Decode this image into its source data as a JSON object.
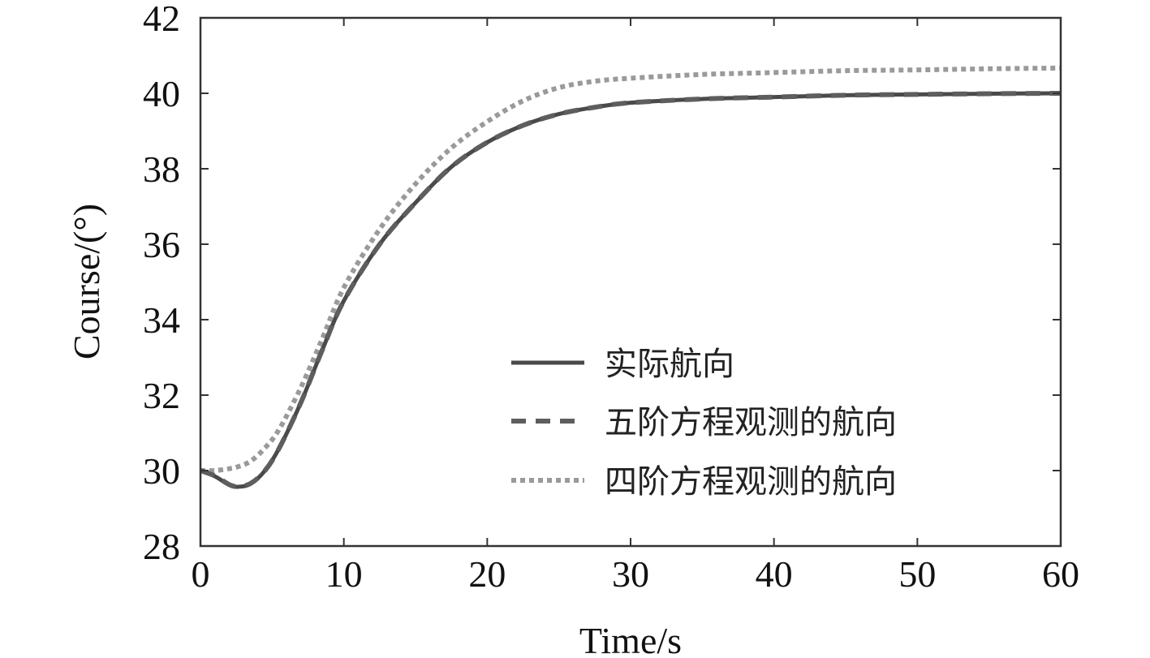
{
  "chart_data": {
    "type": "line",
    "xlabel": "Time/s",
    "ylabel": "Course/(°)",
    "xlim": [
      0,
      60
    ],
    "ylim": [
      28,
      42
    ],
    "xticks": [
      0,
      10,
      20,
      30,
      40,
      50,
      60
    ],
    "yticks": [
      28,
      30,
      32,
      34,
      36,
      38,
      40,
      42
    ],
    "grid": false,
    "legend_position": "bottom-right",
    "x": [
      0,
      1,
      2,
      2.6,
      3.5,
      4.5,
      5.5,
      7,
      8.5,
      10,
      12.5,
      15,
      17.5,
      20,
      22.5,
      25,
      27.5,
      30,
      35,
      40,
      45,
      50,
      55,
      60
    ],
    "series": [
      {
        "name": "实际航向",
        "style": "solid",
        "color": "#4a4a4a",
        "values": [
          30,
          29.85,
          29.62,
          29.57,
          29.65,
          30.0,
          30.6,
          31.8,
          33.2,
          34.5,
          36.0,
          37.1,
          38.05,
          38.7,
          39.15,
          39.45,
          39.63,
          39.75,
          39.85,
          39.9,
          39.95,
          39.97,
          39.99,
          40
        ]
      },
      {
        "name": "五阶方程观测的航向",
        "style": "dashed",
        "color": "#5e5e5e",
        "values": [
          30,
          29.86,
          29.63,
          29.58,
          29.66,
          30.0,
          30.6,
          31.8,
          33.2,
          34.5,
          36.0,
          37.1,
          38.05,
          38.7,
          39.15,
          39.45,
          39.63,
          39.75,
          39.85,
          39.9,
          39.95,
          39.97,
          39.99,
          40
        ]
      },
      {
        "name": "四阶方程观测的航向",
        "style": "dotted",
        "color": "#9a9a9a",
        "values": [
          30,
          30.0,
          30.05,
          30.1,
          30.25,
          30.6,
          31.1,
          32.2,
          33.5,
          34.85,
          36.4,
          37.6,
          38.55,
          39.25,
          39.8,
          40.15,
          40.32,
          40.4,
          40.5,
          40.55,
          40.6,
          40.62,
          40.65,
          40.67
        ]
      }
    ]
  }
}
